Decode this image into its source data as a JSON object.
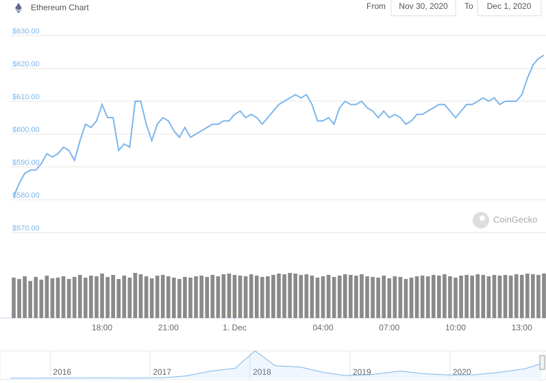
{
  "header": {
    "title": "Ethereum Chart",
    "from_label": "From",
    "from_value": "Nov 30, 2020",
    "to_label": "To",
    "to_value": "Dec 1, 2020"
  },
  "watermark": "CoinGecko",
  "chart_data": {
    "type": "line",
    "color": "#7cb5ec",
    "grid": true,
    "values": [
      581,
      585,
      588,
      589,
      589,
      591,
      594,
      593,
      594,
      596,
      595,
      592,
      598,
      603,
      602,
      604,
      609,
      605,
      605,
      595,
      597,
      596,
      610,
      610,
      603,
      598,
      603,
      605,
      604,
      601,
      599,
      602,
      599,
      600,
      601,
      602,
      603,
      603,
      604,
      604,
      606,
      607,
      605,
      606,
      605,
      603,
      605,
      607,
      609,
      610,
      611,
      612,
      611,
      612,
      609,
      604,
      604,
      605,
      603,
      608,
      610,
      609,
      609,
      610,
      608,
      607,
      605,
      607,
      605,
      606,
      605,
      603,
      604,
      606,
      606,
      607,
      608,
      609,
      609,
      607,
      605,
      607,
      609,
      609,
      610,
      611,
      610,
      611,
      609,
      610,
      610,
      610,
      612,
      617,
      621,
      623,
      624
    ],
    "volume": {
      "color": "#8a8a8a",
      "values": [
        60,
        58,
        62,
        55,
        61,
        57,
        63,
        59,
        60,
        62,
        58,
        61,
        64,
        60,
        63,
        62,
        66,
        61,
        64,
        58,
        63,
        60,
        67,
        65,
        62,
        59,
        63,
        64,
        62,
        60,
        58,
        61,
        60,
        62,
        63,
        61,
        64,
        62,
        65,
        66,
        64,
        63,
        62,
        65,
        63,
        61,
        62,
        64,
        66,
        65,
        67,
        66,
        64,
        65,
        63,
        60,
        62,
        64,
        61,
        63,
        65,
        64,
        63,
        65,
        62,
        61,
        60,
        63,
        59,
        62,
        61,
        58,
        60,
        62,
        63,
        62,
        64,
        63,
        65,
        62,
        60,
        63,
        64,
        63,
        65,
        64,
        62,
        64,
        63,
        64,
        63,
        65,
        64,
        66,
        65,
        64,
        66
      ]
    },
    "xlim": [
      0,
      96
    ],
    "xticks": [
      {
        "value": 16,
        "label": "18:00"
      },
      {
        "value": 28,
        "label": "21:00"
      },
      {
        "value": 40,
        "label": "1. Dec"
      },
      {
        "value": 56,
        "label": "04:00"
      },
      {
        "value": 68,
        "label": "07:00"
      },
      {
        "value": 80,
        "label": "10:00"
      },
      {
        "value": 92,
        "label": "13:00"
      }
    ],
    "ylim": [
      570,
      630
    ],
    "yticks": [
      {
        "value": 570,
        "label": "$570.00"
      },
      {
        "value": 580,
        "label": "$580.00"
      },
      {
        "value": 590,
        "label": "$590.00"
      },
      {
        "value": 600,
        "label": "$600.00"
      },
      {
        "value": 610,
        "label": "$610.00"
      },
      {
        "value": 620,
        "label": "$620.00"
      },
      {
        "value": 630,
        "label": "$630.00"
      }
    ],
    "navigator": {
      "xlim": [
        2015.6,
        2020.94
      ],
      "xticks": [
        2016,
        2017,
        2018,
        2019,
        2020
      ],
      "x": [
        2015.6,
        2015.85,
        2016.1,
        2016.35,
        2016.6,
        2016.85,
        2017.1,
        2017.35,
        2017.6,
        2017.85,
        2018.05,
        2018.25,
        2018.5,
        2018.75,
        2018.95,
        2019.2,
        2019.5,
        2019.75,
        2020.0,
        2020.25,
        2020.5,
        2020.75,
        2020.92
      ],
      "values": [
        2,
        1,
        6,
        12,
        12,
        9,
        15,
        90,
        280,
        400,
        1100,
        500,
        450,
        220,
        110,
        140,
        290,
        180,
        130,
        140,
        240,
        380,
        600
      ]
    }
  }
}
